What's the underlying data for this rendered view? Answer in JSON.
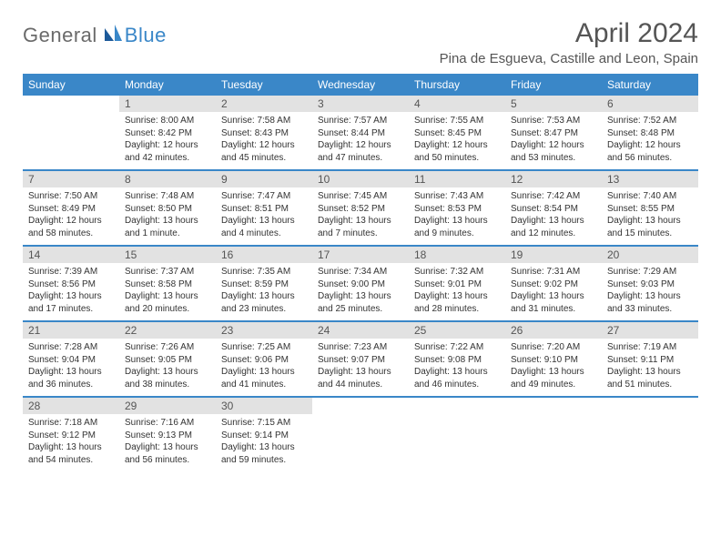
{
  "logo": {
    "general": "General",
    "blue": "Blue"
  },
  "title": "April 2024",
  "location": "Pina de Esgueva, Castille and Leon, Spain",
  "colors": {
    "header_bg": "#3a87c8",
    "header_fg": "#ffffff",
    "daynum_bg": "#e2e2e2",
    "text": "#333333",
    "title_color": "#555555",
    "row_border": "#3a87c8",
    "background": "#ffffff"
  },
  "weekdays": [
    "Sunday",
    "Monday",
    "Tuesday",
    "Wednesday",
    "Thursday",
    "Friday",
    "Saturday"
  ],
  "weeks": [
    [
      null,
      {
        "n": "1",
        "sr": "8:00 AM",
        "ss": "8:42 PM",
        "dl": "12 hours and 42 minutes."
      },
      {
        "n": "2",
        "sr": "7:58 AM",
        "ss": "8:43 PM",
        "dl": "12 hours and 45 minutes."
      },
      {
        "n": "3",
        "sr": "7:57 AM",
        "ss": "8:44 PM",
        "dl": "12 hours and 47 minutes."
      },
      {
        "n": "4",
        "sr": "7:55 AM",
        "ss": "8:45 PM",
        "dl": "12 hours and 50 minutes."
      },
      {
        "n": "5",
        "sr": "7:53 AM",
        "ss": "8:47 PM",
        "dl": "12 hours and 53 minutes."
      },
      {
        "n": "6",
        "sr": "7:52 AM",
        "ss": "8:48 PM",
        "dl": "12 hours and 56 minutes."
      }
    ],
    [
      {
        "n": "7",
        "sr": "7:50 AM",
        "ss": "8:49 PM",
        "dl": "12 hours and 58 minutes."
      },
      {
        "n": "8",
        "sr": "7:48 AM",
        "ss": "8:50 PM",
        "dl": "13 hours and 1 minute."
      },
      {
        "n": "9",
        "sr": "7:47 AM",
        "ss": "8:51 PM",
        "dl": "13 hours and 4 minutes."
      },
      {
        "n": "10",
        "sr": "7:45 AM",
        "ss": "8:52 PM",
        "dl": "13 hours and 7 minutes."
      },
      {
        "n": "11",
        "sr": "7:43 AM",
        "ss": "8:53 PM",
        "dl": "13 hours and 9 minutes."
      },
      {
        "n": "12",
        "sr": "7:42 AM",
        "ss": "8:54 PM",
        "dl": "13 hours and 12 minutes."
      },
      {
        "n": "13",
        "sr": "7:40 AM",
        "ss": "8:55 PM",
        "dl": "13 hours and 15 minutes."
      }
    ],
    [
      {
        "n": "14",
        "sr": "7:39 AM",
        "ss": "8:56 PM",
        "dl": "13 hours and 17 minutes."
      },
      {
        "n": "15",
        "sr": "7:37 AM",
        "ss": "8:58 PM",
        "dl": "13 hours and 20 minutes."
      },
      {
        "n": "16",
        "sr": "7:35 AM",
        "ss": "8:59 PM",
        "dl": "13 hours and 23 minutes."
      },
      {
        "n": "17",
        "sr": "7:34 AM",
        "ss": "9:00 PM",
        "dl": "13 hours and 25 minutes."
      },
      {
        "n": "18",
        "sr": "7:32 AM",
        "ss": "9:01 PM",
        "dl": "13 hours and 28 minutes."
      },
      {
        "n": "19",
        "sr": "7:31 AM",
        "ss": "9:02 PM",
        "dl": "13 hours and 31 minutes."
      },
      {
        "n": "20",
        "sr": "7:29 AM",
        "ss": "9:03 PM",
        "dl": "13 hours and 33 minutes."
      }
    ],
    [
      {
        "n": "21",
        "sr": "7:28 AM",
        "ss": "9:04 PM",
        "dl": "13 hours and 36 minutes."
      },
      {
        "n": "22",
        "sr": "7:26 AM",
        "ss": "9:05 PM",
        "dl": "13 hours and 38 minutes."
      },
      {
        "n": "23",
        "sr": "7:25 AM",
        "ss": "9:06 PM",
        "dl": "13 hours and 41 minutes."
      },
      {
        "n": "24",
        "sr": "7:23 AM",
        "ss": "9:07 PM",
        "dl": "13 hours and 44 minutes."
      },
      {
        "n": "25",
        "sr": "7:22 AM",
        "ss": "9:08 PM",
        "dl": "13 hours and 46 minutes."
      },
      {
        "n": "26",
        "sr": "7:20 AM",
        "ss": "9:10 PM",
        "dl": "13 hours and 49 minutes."
      },
      {
        "n": "27",
        "sr": "7:19 AM",
        "ss": "9:11 PM",
        "dl": "13 hours and 51 minutes."
      }
    ],
    [
      {
        "n": "28",
        "sr": "7:18 AM",
        "ss": "9:12 PM",
        "dl": "13 hours and 54 minutes."
      },
      {
        "n": "29",
        "sr": "7:16 AM",
        "ss": "9:13 PM",
        "dl": "13 hours and 56 minutes."
      },
      {
        "n": "30",
        "sr": "7:15 AM",
        "ss": "9:14 PM",
        "dl": "13 hours and 59 minutes."
      },
      null,
      null,
      null,
      null
    ]
  ],
  "labels": {
    "sunrise": "Sunrise:",
    "sunset": "Sunset:",
    "daylight": "Daylight:"
  }
}
